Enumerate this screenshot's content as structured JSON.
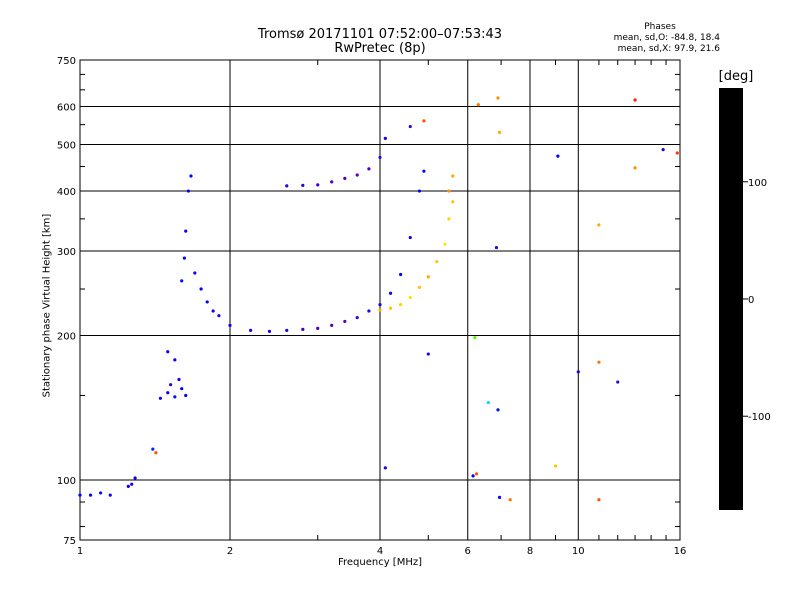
{
  "chart_data": {
    "type": "scatter",
    "title": "Tromsø 20171101 07:52:00–07:53:43",
    "subtitle": "RwPretec (8p)",
    "xlabel": "Frequency [MHz]",
    "ylabel": "Stationary phase Virtual Height [km]",
    "x_scale": "log",
    "y_scale": "log",
    "xlim": [
      1,
      16
    ],
    "ylim": [
      75,
      750
    ],
    "x_ticks": [
      1,
      2,
      4,
      6,
      8,
      10,
      16
    ],
    "y_ticks": [
      75,
      100,
      200,
      300,
      400,
      500,
      600,
      750
    ],
    "grid": true,
    "stats": {
      "title": "Phases",
      "o_line": "mean, sd,O: -84.8, 18.4",
      "x_line": "mean, sd,X:  97.9, 21.6"
    },
    "colorbar": {
      "label": "[deg]",
      "ticks": [
        100,
        0,
        -100
      ],
      "range": [
        -180,
        180
      ],
      "colors": {
        "black": "#000000",
        "purple": "#6a00a8",
        "blue": "#0000ff",
        "cyan": "#00ffff",
        "green": "#00ff00",
        "yellow": "#ffff00",
        "orange": "#ff8000",
        "red": "#ff0000"
      }
    },
    "series": [
      {
        "points": [
          [
            1.0,
            93,
            -90
          ],
          [
            1.05,
            93,
            -95
          ],
          [
            1.1,
            94,
            -88
          ],
          [
            1.15,
            93,
            -100
          ],
          [
            1.25,
            97,
            -92
          ],
          [
            1.27,
            98,
            -105
          ],
          [
            1.29,
            101,
            -98
          ],
          [
            1.4,
            116,
            -80
          ],
          [
            1.42,
            114,
            150
          ],
          [
            1.45,
            148,
            -100
          ],
          [
            1.5,
            152,
            -95
          ],
          [
            1.52,
            158,
            -110
          ],
          [
            1.55,
            149,
            -85
          ],
          [
            1.58,
            162,
            -100
          ],
          [
            1.6,
            155,
            -90
          ],
          [
            1.63,
            150,
            -92
          ],
          [
            1.5,
            185,
            -100
          ],
          [
            1.55,
            178,
            -95
          ],
          [
            1.6,
            260,
            -85
          ],
          [
            1.62,
            290,
            -95
          ],
          [
            1.63,
            330,
            -105
          ],
          [
            1.65,
            400,
            -95
          ],
          [
            1.67,
            430,
            -90
          ],
          [
            1.7,
            270,
            -100
          ],
          [
            1.75,
            250,
            -95
          ],
          [
            1.8,
            235,
            -90
          ],
          [
            1.85,
            225,
            -100
          ],
          [
            1.9,
            220,
            -95
          ],
          [
            2.0,
            210,
            -95
          ],
          [
            2.2,
            205,
            -100
          ],
          [
            2.4,
            204,
            -105
          ],
          [
            2.6,
            205,
            -110
          ],
          [
            2.8,
            206,
            -115
          ],
          [
            3.0,
            207,
            -120
          ],
          [
            3.2,
            210,
            -125
          ],
          [
            3.4,
            214,
            -130
          ],
          [
            3.6,
            218,
            -120
          ],
          [
            3.8,
            225,
            -110
          ],
          [
            4.0,
            232,
            -100
          ],
          [
            4.2,
            245,
            -95
          ],
          [
            4.4,
            268,
            -90
          ],
          [
            4.6,
            320,
            -95
          ],
          [
            4.8,
            400,
            -90
          ],
          [
            4.9,
            440,
            -95
          ],
          [
            2.6,
            410,
            -105
          ],
          [
            2.8,
            411,
            -110
          ],
          [
            3.0,
            412,
            -115
          ],
          [
            3.2,
            418,
            -120
          ],
          [
            3.4,
            425,
            -125
          ],
          [
            3.6,
            432,
            -130
          ],
          [
            3.8,
            445,
            -120
          ],
          [
            4.0,
            470,
            -110
          ],
          [
            4.1,
            515,
            -100
          ],
          [
            4.6,
            545,
            -110
          ],
          [
            4.0,
            226,
            120
          ],
          [
            4.2,
            228,
            110
          ],
          [
            4.4,
            232,
            105
          ],
          [
            4.6,
            240,
            100
          ],
          [
            4.8,
            252,
            110
          ],
          [
            5.0,
            265,
            120
          ],
          [
            5.2,
            285,
            110
          ],
          [
            5.4,
            310,
            100
          ],
          [
            5.5,
            350,
            105
          ],
          [
            5.6,
            380,
            110
          ],
          [
            5.5,
            400,
            130
          ],
          [
            5.6,
            430,
            120
          ],
          [
            4.9,
            560,
            150
          ],
          [
            6.3,
            605,
            140
          ],
          [
            6.9,
            625,
            130
          ],
          [
            6.95,
            530,
            120
          ],
          [
            6.2,
            198,
            30
          ],
          [
            6.6,
            145,
            -30
          ],
          [
            6.9,
            140,
            -85
          ],
          [
            6.85,
            305,
            -110
          ],
          [
            6.95,
            92,
            -100
          ],
          [
            7.3,
            91,
            140
          ],
          [
            6.25,
            103,
            150
          ],
          [
            6.15,
            102,
            -90
          ],
          [
            4.1,
            106,
            -110
          ],
          [
            5.0,
            183,
            -105
          ],
          [
            9.0,
            107,
            110
          ],
          [
            9.1,
            473,
            -90
          ],
          [
            10.0,
            168,
            -110
          ],
          [
            11.0,
            91,
            150
          ],
          [
            11.0,
            340,
            120
          ],
          [
            11.0,
            176,
            140
          ],
          [
            12.0,
            160,
            -110
          ],
          [
            13.0,
            619,
            170
          ],
          [
            13.0,
            447,
            130
          ],
          [
            14.8,
            488,
            -110
          ],
          [
            15.8,
            480,
            160
          ]
        ]
      }
    ]
  }
}
